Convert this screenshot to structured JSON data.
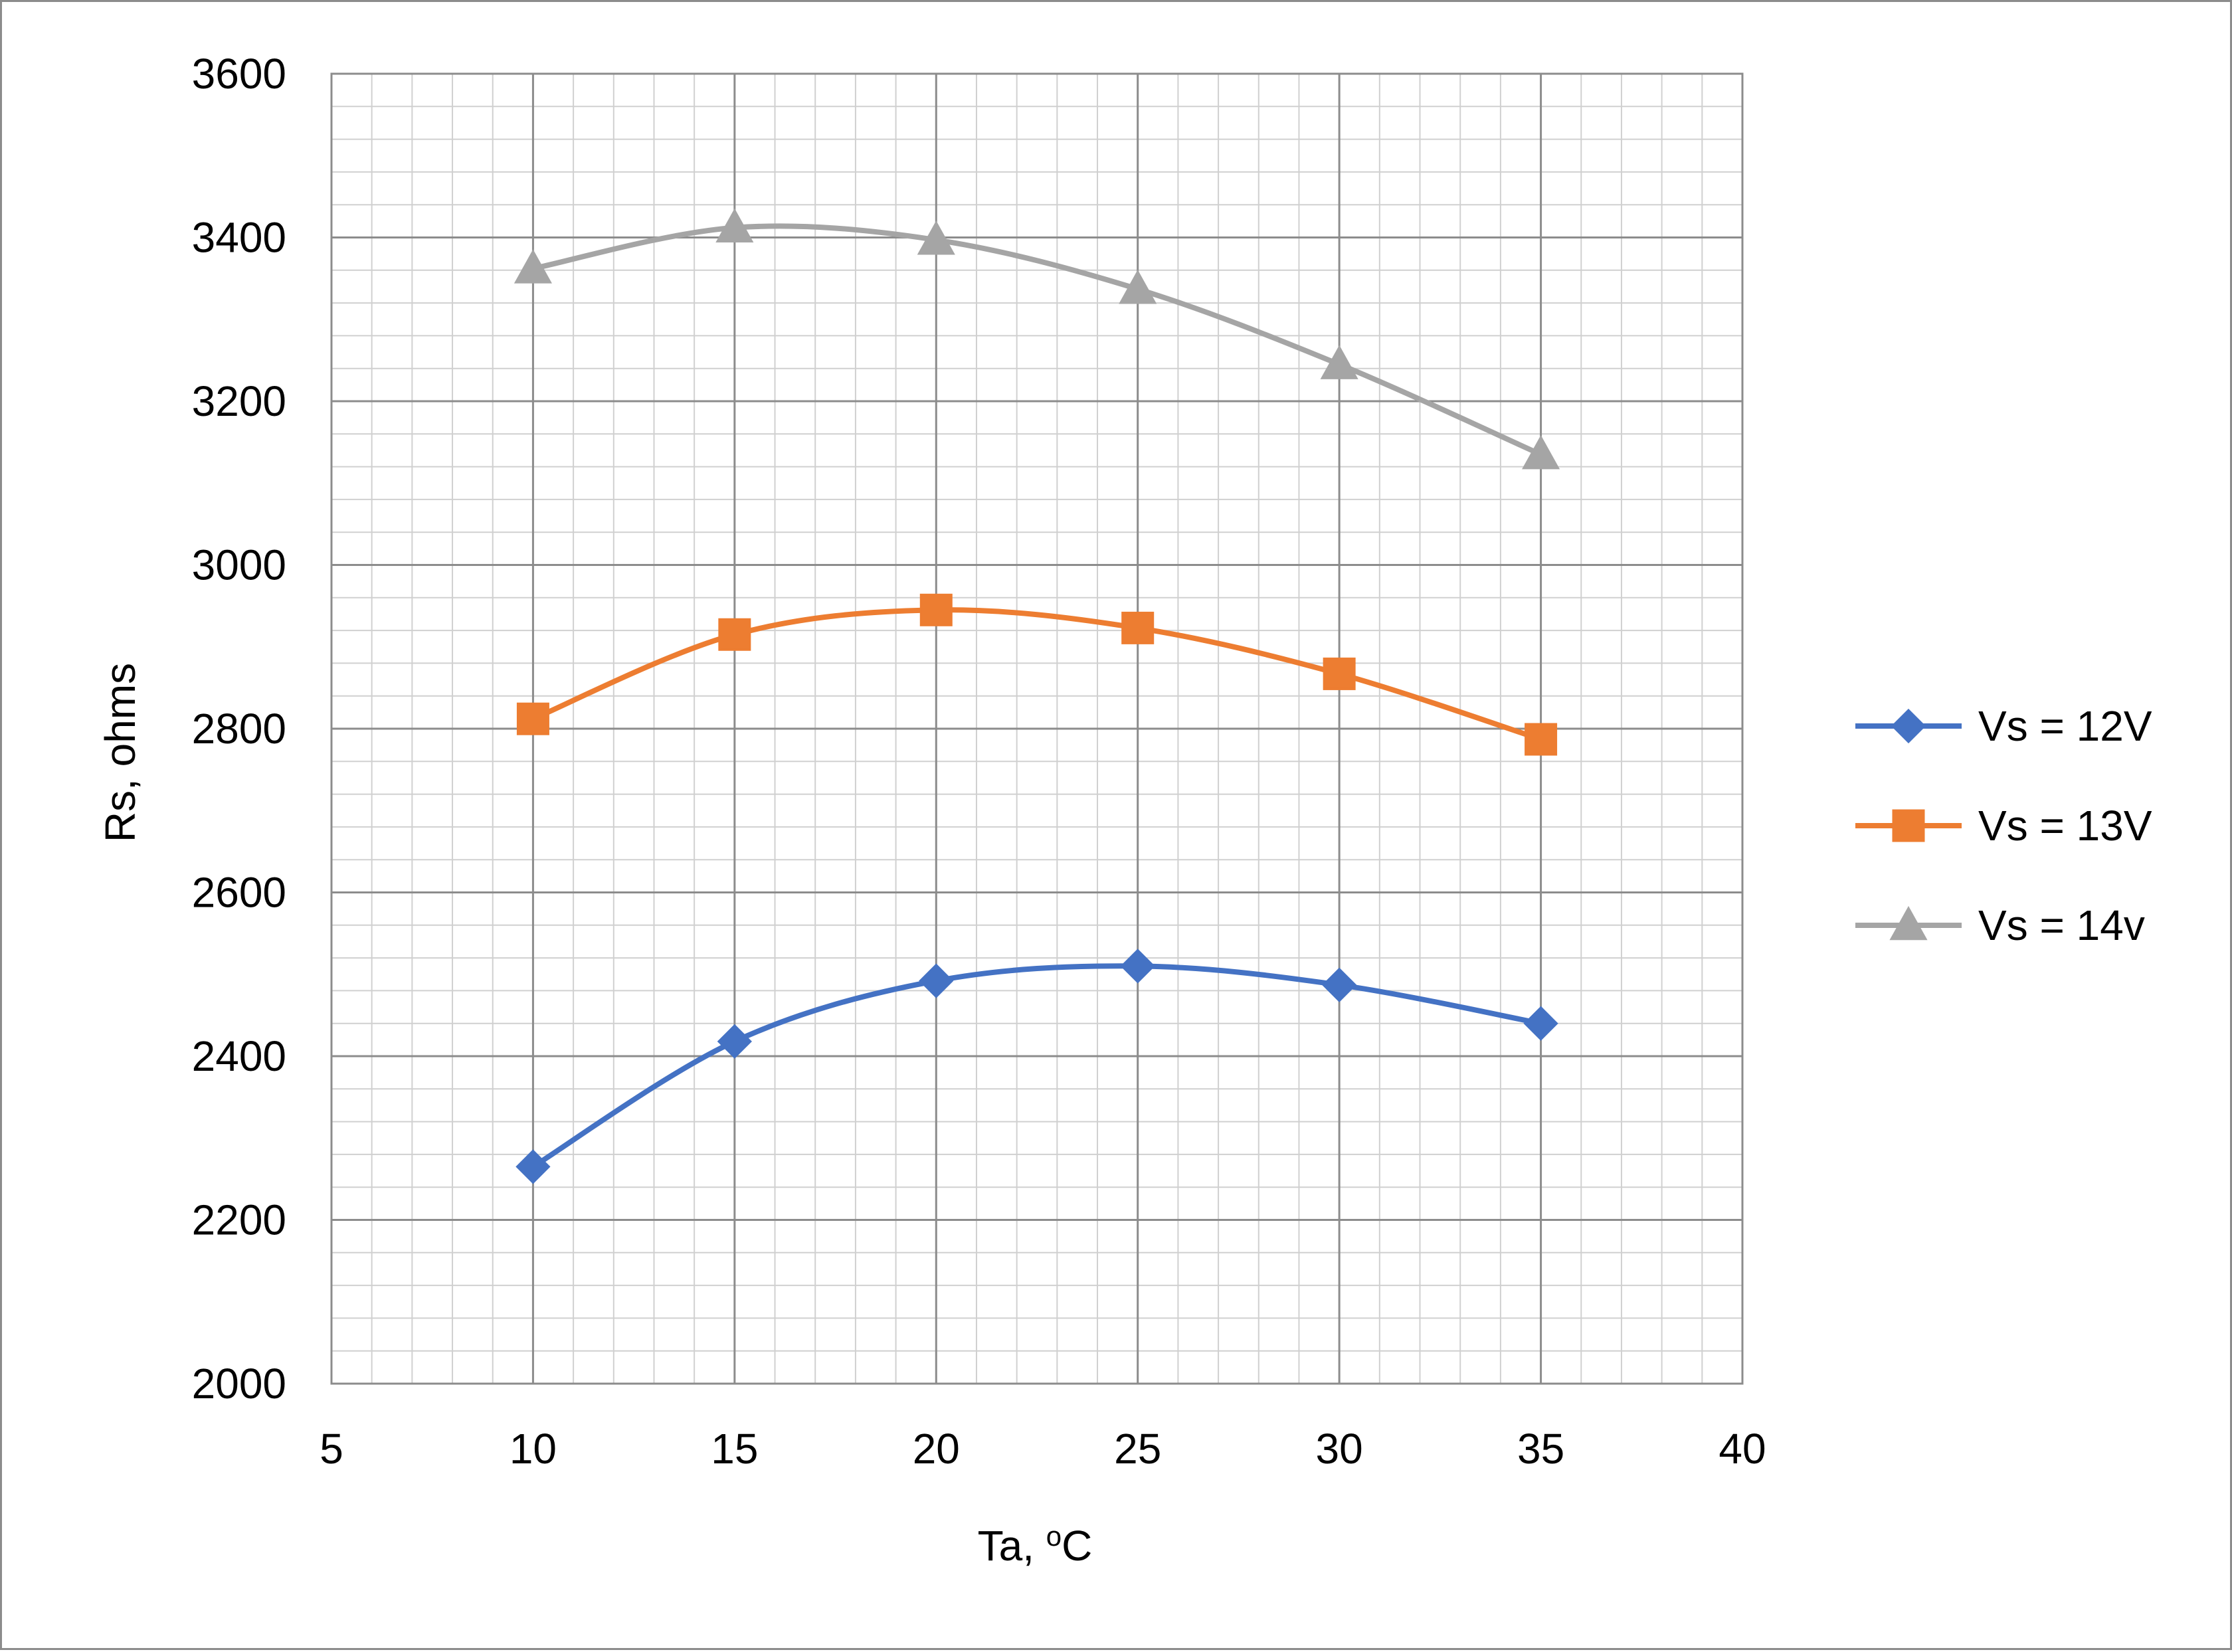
{
  "chart_data": {
    "type": "line",
    "title": "",
    "xlabel": "Ta, ",
    "xlabel_sup": "o",
    "xlabel_unit": "C",
    "ylabel": "Rs,  ohms",
    "xlim": [
      5,
      40
    ],
    "ylim": [
      2000,
      3600
    ],
    "x_major_ticks": [
      5,
      10,
      15,
      20,
      25,
      30,
      35,
      40
    ],
    "y_major_ticks": [
      2000,
      2200,
      2400,
      2600,
      2800,
      3000,
      3200,
      3400,
      3600
    ],
    "x_minor_step": 1,
    "y_minor_step": 40,
    "grid": true,
    "legend_position": "right",
    "smooth": true,
    "series": [
      {
        "name": "Vs = 12V",
        "marker": "diamond",
        "color": "#4472C4",
        "x": [
          10,
          15,
          20,
          25,
          30,
          35
        ],
        "y": [
          2265,
          2418,
          2492,
          2510,
          2487,
          2440
        ]
      },
      {
        "name": "Vs = 13V",
        "marker": "square",
        "color": "#ED7D31",
        "x": [
          10,
          15,
          20,
          25,
          30,
          35
        ],
        "y": [
          2812,
          2915,
          2945,
          2923,
          2867,
          2787
        ]
      },
      {
        "name": "Vs = 14v",
        "marker": "triangle",
        "color": "#A5A5A5",
        "x": [
          10,
          15,
          20,
          25,
          30,
          35
        ],
        "y": [
          3362,
          3412,
          3397,
          3337,
          3245,
          3135
        ]
      }
    ]
  }
}
